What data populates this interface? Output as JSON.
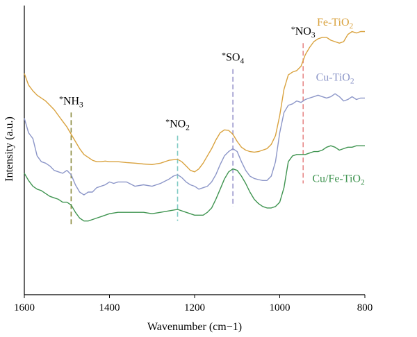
{
  "chart_data": {
    "type": "line",
    "title": "",
    "xlabel": "Wavenumber (cm−1)",
    "ylabel": "Intensity (a.u.)",
    "xlim": [
      1600,
      800
    ],
    "x_reversed": true,
    "ylim": [
      0,
      10
    ],
    "y_ticks_shown": false,
    "grid": false,
    "x_ticks": [
      1600,
      1400,
      1200,
      1000,
      800
    ],
    "series": [
      {
        "name": "Fe-TiO₂",
        "color": "#d9a23e",
        "x": [
          1600,
          1590,
          1580,
          1570,
          1560,
          1550,
          1540,
          1530,
          1520,
          1510,
          1500,
          1490,
          1480,
          1470,
          1460,
          1450,
          1440,
          1430,
          1420,
          1410,
          1400,
          1380,
          1360,
          1340,
          1320,
          1300,
          1280,
          1260,
          1240,
          1230,
          1220,
          1210,
          1200,
          1190,
          1180,
          1170,
          1160,
          1150,
          1140,
          1130,
          1120,
          1110,
          1100,
          1090,
          1080,
          1070,
          1060,
          1050,
          1040,
          1030,
          1020,
          1010,
          1000,
          990,
          980,
          970,
          960,
          950,
          940,
          930,
          920,
          910,
          900,
          890,
          880,
          870,
          860,
          850,
          840,
          830,
          820,
          810,
          800
        ],
        "y": [
          7.65,
          7.25,
          7.05,
          6.9,
          6.8,
          6.7,
          6.55,
          6.4,
          6.2,
          6.0,
          5.8,
          5.55,
          5.3,
          5.05,
          4.85,
          4.75,
          4.65,
          4.6,
          4.6,
          4.62,
          4.6,
          4.6,
          4.57,
          4.55,
          4.52,
          4.5,
          4.55,
          4.65,
          4.68,
          4.6,
          4.45,
          4.3,
          4.25,
          4.35,
          4.55,
          4.8,
          5.05,
          5.35,
          5.6,
          5.7,
          5.68,
          5.55,
          5.3,
          5.1,
          5.0,
          4.95,
          4.93,
          4.95,
          5.0,
          5.05,
          5.2,
          5.5,
          6.2,
          7.1,
          7.6,
          7.7,
          7.75,
          7.9,
          8.3,
          8.55,
          8.75,
          8.85,
          8.9,
          8.9,
          8.8,
          8.75,
          8.7,
          8.75,
          9.0,
          9.1,
          9.05,
          9.1,
          9.1
        ]
      },
      {
        "name": "Cu-TiO₂",
        "color": "#8c96c8",
        "x": [
          1600,
          1590,
          1580,
          1570,
          1560,
          1550,
          1540,
          1530,
          1520,
          1510,
          1500,
          1490,
          1480,
          1470,
          1460,
          1450,
          1440,
          1430,
          1420,
          1410,
          1400,
          1390,
          1380,
          1360,
          1340,
          1320,
          1300,
          1280,
          1260,
          1250,
          1240,
          1230,
          1220,
          1210,
          1200,
          1190,
          1180,
          1170,
          1160,
          1150,
          1140,
          1130,
          1120,
          1110,
          1100,
          1090,
          1080,
          1070,
          1060,
          1050,
          1040,
          1030,
          1020,
          1010,
          1000,
          990,
          980,
          970,
          960,
          950,
          940,
          930,
          920,
          910,
          900,
          890,
          880,
          870,
          860,
          850,
          840,
          830,
          820,
          810,
          800
        ],
        "y": [
          6.1,
          5.6,
          5.4,
          4.8,
          4.6,
          4.55,
          4.45,
          4.3,
          4.25,
          4.2,
          4.3,
          4.15,
          3.8,
          3.55,
          3.45,
          3.55,
          3.55,
          3.7,
          3.75,
          3.8,
          3.9,
          3.85,
          3.9,
          3.9,
          3.75,
          3.8,
          3.75,
          3.85,
          4.0,
          4.1,
          4.15,
          4.05,
          3.9,
          3.8,
          3.75,
          3.65,
          3.7,
          3.75,
          3.9,
          4.15,
          4.5,
          4.8,
          4.95,
          5.05,
          4.95,
          4.6,
          4.3,
          4.1,
          4.02,
          3.98,
          3.95,
          3.95,
          4.1,
          4.6,
          5.6,
          6.3,
          6.55,
          6.6,
          6.7,
          6.65,
          6.75,
          6.8,
          6.85,
          6.9,
          6.85,
          6.8,
          6.85,
          6.95,
          6.85,
          6.7,
          6.75,
          6.85,
          6.75,
          6.8,
          6.8
        ]
      },
      {
        "name": "Cu/Fe-TiO₂",
        "color": "#3f9450",
        "x": [
          1600,
          1590,
          1580,
          1570,
          1560,
          1550,
          1540,
          1530,
          1520,
          1510,
          1500,
          1490,
          1480,
          1470,
          1460,
          1450,
          1440,
          1430,
          1420,
          1410,
          1400,
          1380,
          1360,
          1340,
          1320,
          1300,
          1280,
          1260,
          1240,
          1220,
          1200,
          1190,
          1180,
          1170,
          1160,
          1150,
          1140,
          1130,
          1120,
          1110,
          1100,
          1090,
          1080,
          1070,
          1060,
          1050,
          1040,
          1030,
          1020,
          1010,
          1000,
          990,
          980,
          970,
          960,
          950,
          940,
          930,
          920,
          910,
          900,
          890,
          880,
          870,
          860,
          850,
          840,
          830,
          820,
          810,
          800
        ],
        "y": [
          4.2,
          3.95,
          3.75,
          3.65,
          3.6,
          3.5,
          3.4,
          3.35,
          3.3,
          3.2,
          3.2,
          3.1,
          2.85,
          2.65,
          2.55,
          2.55,
          2.6,
          2.65,
          2.7,
          2.75,
          2.8,
          2.85,
          2.85,
          2.85,
          2.85,
          2.8,
          2.85,
          2.9,
          2.95,
          2.85,
          2.75,
          2.75,
          2.75,
          2.85,
          3.0,
          3.3,
          3.65,
          4.0,
          4.25,
          4.35,
          4.3,
          4.1,
          3.85,
          3.55,
          3.3,
          3.15,
          3.05,
          3.0,
          3.0,
          3.05,
          3.2,
          3.7,
          4.6,
          4.8,
          4.85,
          4.85,
          4.85,
          4.9,
          4.95,
          4.95,
          5.0,
          5.1,
          5.15,
          5.1,
          5.0,
          5.05,
          5.1,
          5.1,
          5.15,
          5.15,
          5.15
        ]
      }
    ],
    "annotations": [
      {
        "label": "*NH₃",
        "x": 1490,
        "color": "#8a8a3c",
        "y_top": 6.3,
        "y_bottom": 2.35
      },
      {
        "label": "*NO₂",
        "x": 1240,
        "color": "#7fcac4",
        "y_top": 5.5,
        "y_bottom": 2.55
      },
      {
        "label": "*SO₄",
        "x": 1110,
        "color": "#9a96cc",
        "y_top": 7.8,
        "y_bottom": 3.05
      },
      {
        "label": "*NO₃",
        "x": 945,
        "color": "#e88a8a",
        "y_top": 8.7,
        "y_bottom": 3.85
      }
    ]
  }
}
